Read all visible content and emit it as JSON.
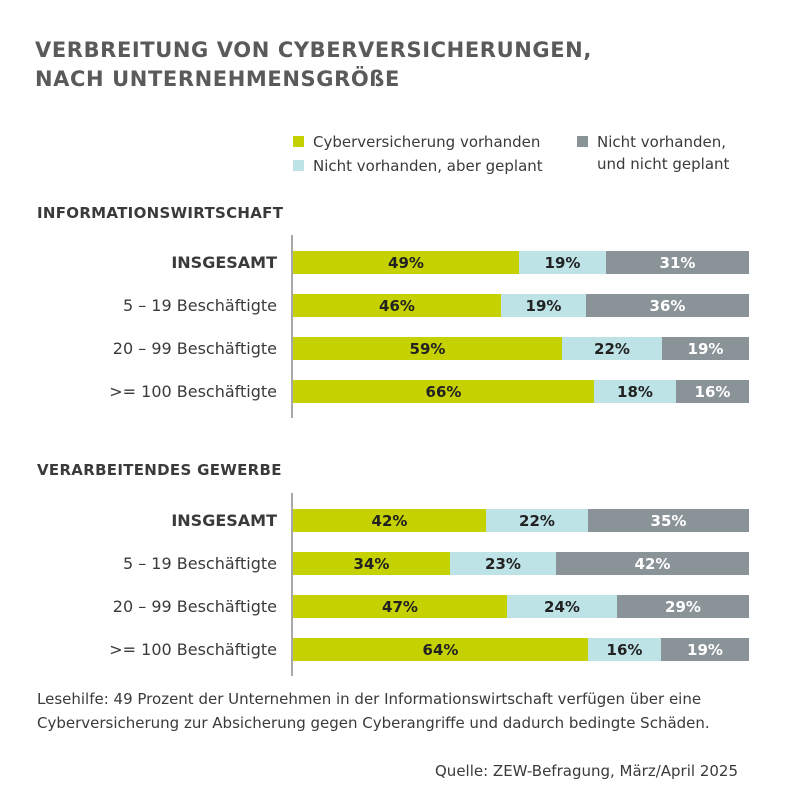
{
  "title_lines": [
    "VERBREITUNG VON CYBERVERSICHERUNGEN,",
    "NACH UNTERNEHMENSGRÖßE"
  ],
  "legend": [
    {
      "label": "Cyberversicherung vorhanden",
      "color": "#c5d100"
    },
    {
      "label": "Nicht vorhanden, aber geplant",
      "color": "#bde3e7"
    },
    {
      "label": "Nicht vorhanden,\nund nicht geplant",
      "color": "#8a9398"
    }
  ],
  "colors": {
    "vorhanden": "#c5d100",
    "geplant": "#bde3e7",
    "nicht_geplant": "#8a9398",
    "text_dark": "#222222",
    "text_light": "#ffffff"
  },
  "footnote_lines": [
    "Lesehilfe: 49 Prozent der Unternehmen in der Informationswirtschaft verfügen über eine",
    "Cyberversicherung zur Absicherung gegen Cyberangriffe und dadurch bedingte Schäden."
  ],
  "source": "Quelle: ZEW-Befragung, März/April 2025",
  "chart_data": {
    "type": "bar",
    "orientation": "horizontal",
    "stacked": true,
    "normalized_to": 100,
    "unit": "%",
    "series_names": [
      "Cyberversicherung vorhanden",
      "Nicht vorhanden, aber geplant",
      "Nicht vorhanden, und nicht geplant"
    ],
    "groups": [
      {
        "title": "INFORMATIONSWIRTSCHAFT",
        "rows": [
          {
            "label": "INSGESAMT",
            "bold": true,
            "values": [
              49,
              19,
              31
            ]
          },
          {
            "label": "5 – 19 Beschäftigte",
            "bold": false,
            "values": [
              46,
              19,
              36
            ]
          },
          {
            "label": "20 – 99 Beschäftigte",
            "bold": false,
            "values": [
              59,
              22,
              19
            ]
          },
          {
            "label": ">= 100 Beschäftigte",
            "bold": false,
            "values": [
              66,
              18,
              16
            ]
          }
        ]
      },
      {
        "title": "VERARBEITENDES GEWERBE",
        "rows": [
          {
            "label": "INSGESAMT",
            "bold": true,
            "values": [
              42,
              22,
              35
            ]
          },
          {
            "label": "5 – 19 Beschäftigte",
            "bold": false,
            "values": [
              34,
              23,
              42
            ]
          },
          {
            "label": "20 – 99 Beschäftigte",
            "bold": false,
            "values": [
              47,
              24,
              29
            ]
          },
          {
            "label": ">= 100 Beschäftigte",
            "bold": false,
            "values": [
              64,
              16,
              19
            ]
          }
        ]
      }
    ]
  }
}
